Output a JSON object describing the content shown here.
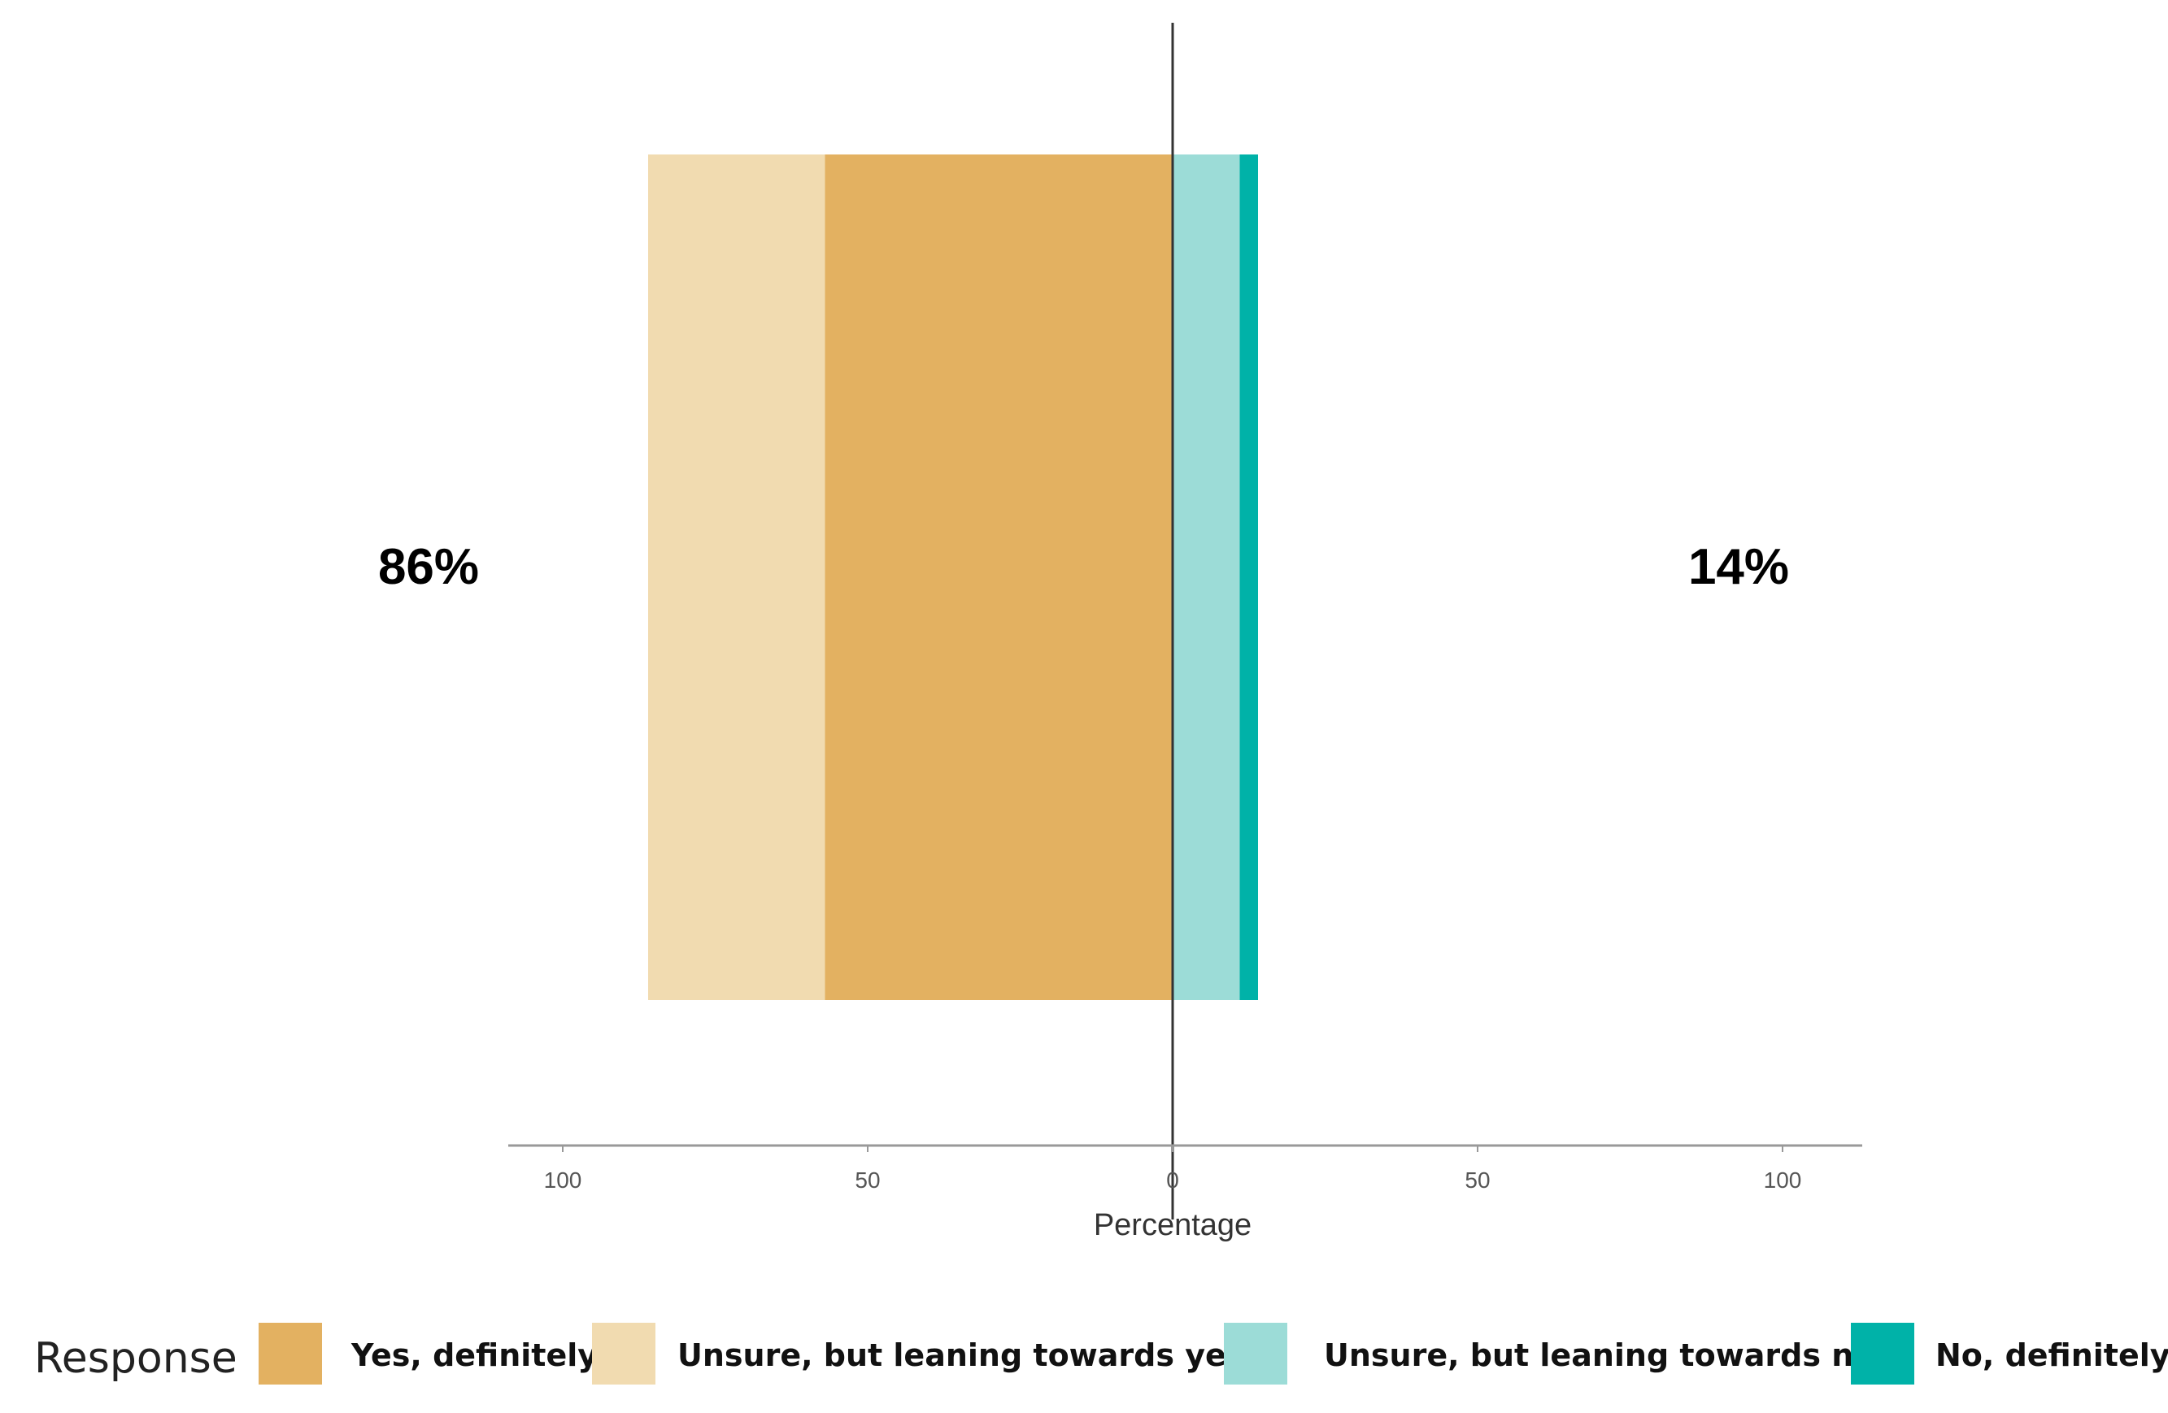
{
  "chart_data": {
    "type": "bar",
    "orientation": "horizontal",
    "stacking": "diverging",
    "xlabel": "Percentage",
    "ylabel": "",
    "xlim": [
      -100,
      100
    ],
    "x_ticks": [
      -100,
      -50,
      0,
      50,
      100
    ],
    "x_tick_labels": [
      "100",
      "50",
      "0",
      "50",
      "100"
    ],
    "series": [
      {
        "name": "Yes, definitely",
        "value": -57,
        "color": "#e3b161"
      },
      {
        "name": "Unsure, but leaning towards yes",
        "value": -29,
        "color": "#f1dbb0"
      },
      {
        "name": "Unsure, but leaning towards no",
        "value": 11,
        "color": "#9cdcd7"
      },
      {
        "name": "No, definitely",
        "value": 3,
        "color": "#00b2a8"
      }
    ],
    "left_total_label": "86%",
    "right_total_label": "14%",
    "legend": {
      "title": "Response",
      "position": "bottom"
    },
    "grid": false
  }
}
